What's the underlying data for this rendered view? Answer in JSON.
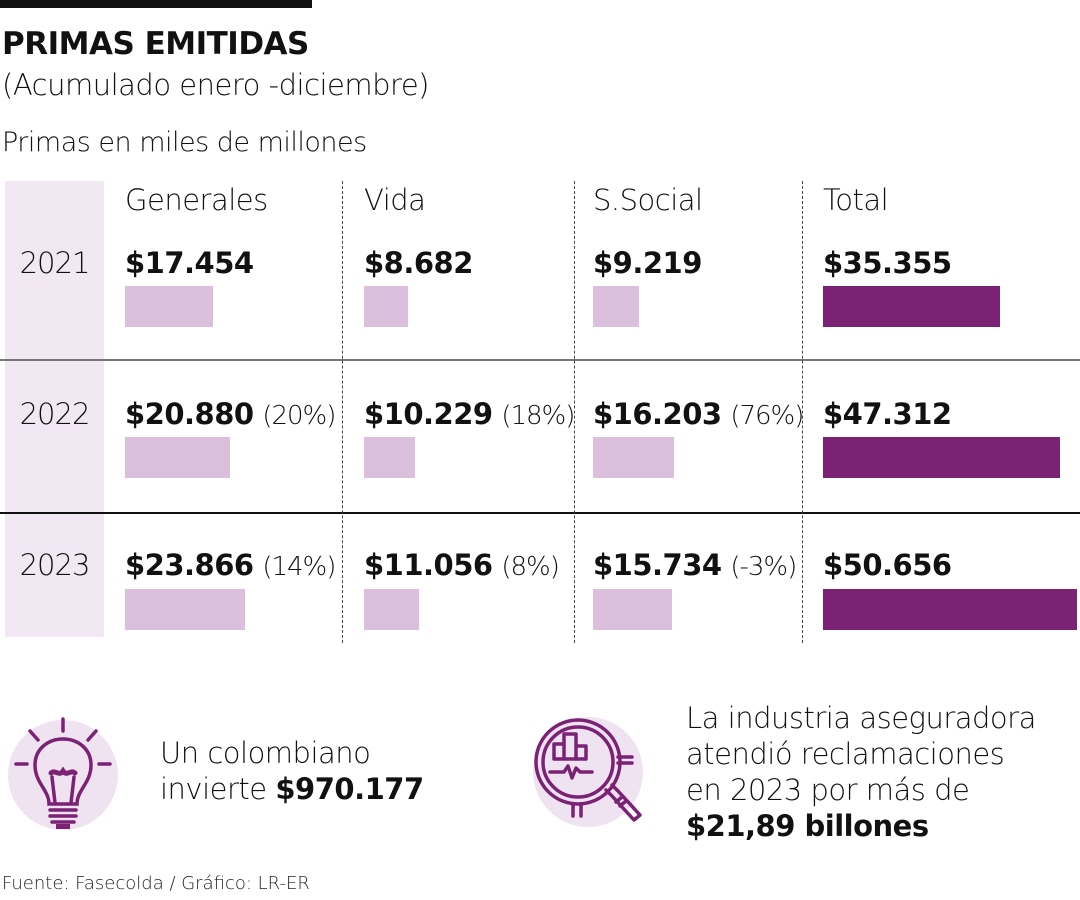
{
  "header": {
    "title": "PRIMAS EMITIDAS",
    "subtitle": "(Acumulado enero -diciembre)",
    "unit_note": "Primas en miles de millones"
  },
  "colors": {
    "category_bar": "#dcbfdc",
    "total_bar": "#7b2275",
    "year_band": "#f1e8f4",
    "icon_bg": "#efe3f1",
    "icon_stroke": "#7b2275"
  },
  "chart_data": {
    "type": "table",
    "title": "PRIMAS EMITIDAS",
    "subtitle": "(Acumulado enero -diciembre)",
    "ylabel": "Primas en miles de millones",
    "columns": [
      "Generales",
      "Vida",
      "S.Social",
      "Total"
    ],
    "rows": [
      {
        "year": "2021",
        "cells": [
          {
            "label": "$17.454",
            "value": 17454,
            "change": ""
          },
          {
            "label": "$8.682",
            "value": 8682,
            "change": ""
          },
          {
            "label": "$9.219",
            "value": 9219,
            "change": ""
          },
          {
            "label": "$35.355",
            "value": 35355,
            "change": ""
          }
        ]
      },
      {
        "year": "2022",
        "cells": [
          {
            "label": "$20.880",
            "value": 20880,
            "change": "(20%)"
          },
          {
            "label": "$10.229",
            "value": 10229,
            "change": "(18%)"
          },
          {
            "label": "$16.203",
            "value": 16203,
            "change": "(76%)"
          },
          {
            "label": "$47.312",
            "value": 47312,
            "change": ""
          }
        ]
      },
      {
        "year": "2023",
        "cells": [
          {
            "label": "$23.866",
            "value": 23866,
            "change": "(14%)"
          },
          {
            "label": "$11.056",
            "value": 11056,
            "change": "(8%)"
          },
          {
            "label": "$15.734",
            "value": 15734,
            "change": "(-3%)"
          },
          {
            "label": "$50.656",
            "value": 50656,
            "change": ""
          }
        ]
      }
    ],
    "value_max": 50656
  },
  "facts": {
    "fact1_line1": "Un colombiano",
    "fact1_line2_prefix": "invierte ",
    "fact1_value": "$970.177",
    "fact1_icon": "lightbulb-icon",
    "fact2_line1": "La industria aseguradora",
    "fact2_line2": "atendió reclamaciones",
    "fact2_line3": "en 2023 por más de",
    "fact2_value": "$21,89 billones",
    "fact2_icon": "magnifier-chart-icon"
  },
  "footer": {
    "source": "Fuente: Fasecolda / Gráfico: LR-ER"
  }
}
